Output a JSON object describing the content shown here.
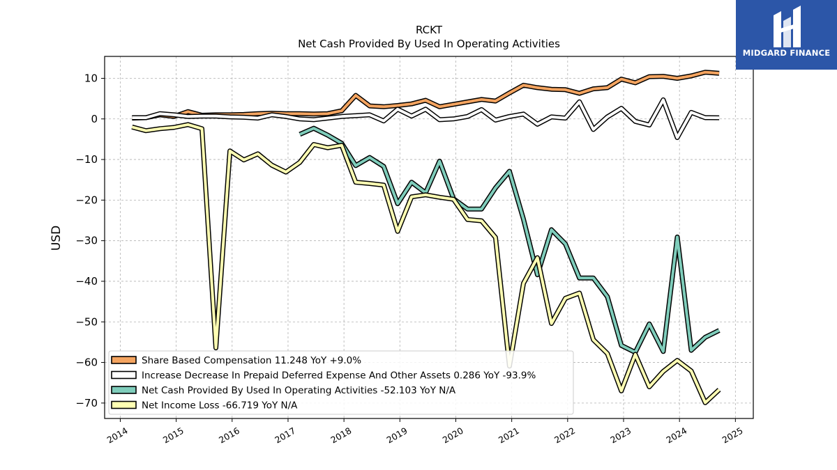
{
  "chart_data": {
    "type": "line",
    "title": "RCKT",
    "subtitle": "Net Cash Provided By Used In Operating Activities",
    "ylabel": "USD",
    "xlabel": "",
    "xlim": [
      2013.72,
      2025.32
    ],
    "ylim": [
      -73.8,
      15.4
    ],
    "x_ticks": [
      "2014",
      "2015",
      "2016",
      "2017",
      "2018",
      "2019",
      "2020",
      "2021",
      "2022",
      "2023",
      "2024",
      "2025"
    ],
    "y_ticks": [
      10,
      0,
      -10,
      -20,
      -30,
      -40,
      -50,
      -60,
      -70
    ],
    "grid": true,
    "legend_position": "lower-left",
    "series": [
      {
        "name": "Share Based Compensation",
        "legend": "Share Based Compensation  11.248 YoY +9.0%",
        "color": "#f4a460",
        "x": [
          2014.21,
          2014.46,
          2014.71,
          2014.96,
          2015.21,
          2015.46,
          2015.71,
          2015.96,
          2016.21,
          2016.46,
          2016.71,
          2016.96,
          2017.21,
          2017.46,
          2017.71,
          2017.96,
          2018.21,
          2018.46,
          2018.71,
          2018.96,
          2019.21,
          2019.46,
          2019.71,
          2019.96,
          2020.21,
          2020.46,
          2020.71,
          2020.96,
          2021.21,
          2021.46,
          2021.71,
          2021.96,
          2022.21,
          2022.46,
          2022.71,
          2022.96,
          2023.21,
          2023.46,
          2023.71,
          2023.96,
          2024.21,
          2024.46,
          2024.71
        ],
        "y": [
          0.2,
          0.3,
          1.0,
          0.6,
          1.8,
          0.9,
          1.0,
          1.0,
          1.1,
          1.3,
          1.4,
          1.3,
          1.3,
          1.2,
          1.3,
          2.0,
          5.8,
          3.2,
          3.0,
          3.3,
          3.7,
          4.6,
          3.0,
          3.6,
          4.2,
          4.8,
          4.4,
          6.4,
          8.3,
          7.7,
          7.3,
          7.2,
          6.3,
          7.4,
          7.7,
          9.8,
          8.9,
          10.4,
          10.5,
          10.0,
          10.6,
          11.5,
          11.248
        ]
      },
      {
        "name": "Increase Decrease In Prepaid Deferred Expense And Other Assets",
        "legend": "Increase Decrease In Prepaid Deferred Expense And Other Assets  0.286 YoY -93.9%",
        "color": "#ffffff",
        "x": [
          2014.21,
          2014.46,
          2014.71,
          2014.96,
          2015.21,
          2015.46,
          2015.71,
          2015.96,
          2016.21,
          2016.46,
          2016.71,
          2016.96,
          2017.21,
          2017.46,
          2017.71,
          2017.96,
          2018.21,
          2018.46,
          2018.71,
          2018.96,
          2019.21,
          2019.46,
          2019.71,
          2019.96,
          2020.21,
          2020.46,
          2020.71,
          2020.96,
          2021.21,
          2021.46,
          2021.71,
          2021.96,
          2022.21,
          2022.46,
          2022.71,
          2022.96,
          2023.21,
          2023.46,
          2023.71,
          2023.96,
          2024.21,
          2024.46,
          2024.71
        ],
        "y": [
          0.3,
          0.3,
          1.3,
          1.0,
          0.6,
          0.7,
          0.7,
          0.5,
          0.4,
          0.2,
          1.0,
          0.6,
          0.0,
          -0.2,
          0.2,
          0.6,
          0.8,
          1.0,
          -0.5,
          2.4,
          0.7,
          2.4,
          -0.2,
          0.0,
          0.6,
          2.3,
          -0.3,
          0.6,
          1.2,
          -1.3,
          0.5,
          0.2,
          4.2,
          -2.6,
          0.5,
          2.6,
          -0.6,
          -1.5,
          4.7,
          -4.6,
          1.6,
          0.3,
          0.286
        ]
      },
      {
        "name": "Net Cash Provided By Used In Operating Activities",
        "legend": "Net Cash Provided By Used In Operating Activities  -52.103 YoY N/A",
        "color": "#7fcdbb",
        "x": [
          2017.21,
          2017.46,
          2017.71,
          2017.96,
          2018.21,
          2018.46,
          2018.71,
          2018.96,
          2019.21,
          2019.46,
          2019.71,
          2019.96,
          2020.21,
          2020.46,
          2020.71,
          2020.96,
          2021.21,
          2021.46,
          2021.71,
          2021.96,
          2022.21,
          2022.46,
          2022.71,
          2022.96,
          2023.21,
          2023.46,
          2023.71,
          2023.96,
          2024.21,
          2024.46,
          2024.71
        ],
        "y": [
          -3.8,
          -2.3,
          -4.0,
          -6.0,
          -11.5,
          -9.5,
          -11.7,
          -20.9,
          -15.6,
          -18.2,
          -10.4,
          -19.7,
          -22.2,
          -22.2,
          -17.0,
          -12.9,
          -24.7,
          -38.4,
          -27.3,
          -30.8,
          -39.2,
          -39.2,
          -43.8,
          -55.8,
          -57.5,
          -50.5,
          -57.3,
          -29.1,
          -57.0,
          -53.8,
          -52.103
        ]
      },
      {
        "name": "Net Income Loss",
        "legend": "Net Income Loss  -66.719 YoY N/A",
        "color": "#ffffb3",
        "x": [
          2014.21,
          2014.46,
          2014.71,
          2014.96,
          2015.21,
          2015.46,
          2015.71,
          2015.96,
          2016.21,
          2016.46,
          2016.71,
          2016.96,
          2017.21,
          2017.46,
          2017.71,
          2017.96,
          2018.21,
          2018.46,
          2018.71,
          2018.96,
          2019.21,
          2019.46,
          2019.71,
          2019.96,
          2020.21,
          2020.46,
          2020.71,
          2020.96,
          2021.21,
          2021.46,
          2021.71,
          2021.96,
          2022.21,
          2022.46,
          2022.71,
          2022.96,
          2023.21,
          2023.46,
          2023.71,
          2023.96,
          2024.21,
          2024.46,
          2024.71
        ],
        "y": [
          -2.0,
          -2.9,
          -2.4,
          -2.1,
          -1.4,
          -2.4,
          -56.4,
          -7.9,
          -10.1,
          -8.6,
          -11.4,
          -13.1,
          -10.7,
          -6.3,
          -7.1,
          -6.5,
          -15.6,
          -15.9,
          -16.3,
          -27.7,
          -19.2,
          -18.7,
          -19.3,
          -19.8,
          -24.8,
          -25.1,
          -29.2,
          -60.9,
          -40.5,
          -34.2,
          -50.4,
          -44.2,
          -42.9,
          -54.4,
          -57.8,
          -67.0,
          -58.0,
          -66.0,
          -62.2,
          -59.5,
          -62.1,
          -69.9,
          -66.719
        ]
      }
    ]
  },
  "logo": {
    "text": "MIDGARD FINANCE"
  }
}
